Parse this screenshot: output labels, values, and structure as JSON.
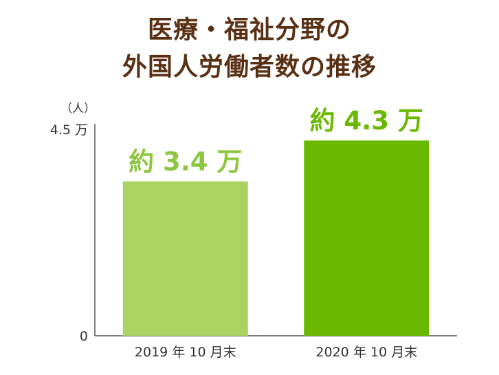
{
  "chart_data": {
    "type": "bar",
    "title_lines": [
      "医療・福祉分野の",
      "外国人労働者数の推移"
    ],
    "unit_label": "（人）",
    "y_tick_labels": [
      "4.5 万",
      "0"
    ],
    "ylim": [
      0,
      45000
    ],
    "categories": [
      "2019 年 10 月末",
      "2020 年 10 月末"
    ],
    "values": [
      34000,
      43000
    ],
    "data_labels": [
      "約 3.4 万",
      "約 4.3 万"
    ],
    "colors": [
      "#abd361",
      "#6ab800"
    ],
    "label_colors": [
      "#8cc63f",
      "#6ab800"
    ],
    "axis_color": "#555555",
    "grid": false
  }
}
